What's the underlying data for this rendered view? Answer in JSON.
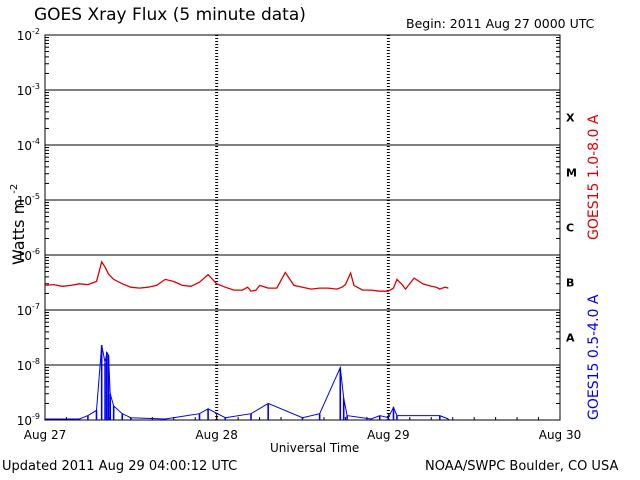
{
  "header": {
    "title": "GOES Xray Flux (5 minute data)",
    "begin": "Begin:  2011 Aug 27 0000 UTC"
  },
  "footer": {
    "updated": "Updated 2011 Aug 29 04:00:12 UTC",
    "credit": "NOAA/SWPC Boulder, CO USA"
  },
  "colors": {
    "long_channel": "#dd0000",
    "short_channel": "#0000ee",
    "axes": "#000000"
  },
  "chart_data": {
    "type": "line",
    "title": "GOES Xray Flux (5 minute data)",
    "xlabel": "Universal Time",
    "ylabel": "Watts m",
    "ylabel_superscript": "-2",
    "y_scale": "log",
    "ylim": [
      1e-09,
      0.01
    ],
    "y_ticks": [
      {
        "base": "10",
        "exp": "-2"
      },
      {
        "base": "10",
        "exp": "-3"
      },
      {
        "base": "10",
        "exp": "-4"
      },
      {
        "base": "10",
        "exp": "-5"
      },
      {
        "base": "10",
        "exp": "-6"
      },
      {
        "base": "10",
        "exp": "-7"
      },
      {
        "base": "10",
        "exp": "-8"
      },
      {
        "base": "10",
        "exp": "-9"
      }
    ],
    "x_unit": "days since 2011 Aug 27 0000 UTC",
    "xlim": [
      0,
      3
    ],
    "x_ticks": [
      "Aug 27",
      "Aug 28",
      "Aug 29",
      "Aug 30"
    ],
    "flare_classes": [
      "X",
      "M",
      "C",
      "B",
      "A"
    ],
    "grid": "horizontal decades, dashed day markers",
    "series": [
      {
        "name": "GOES15 1.0-8.0 A",
        "color": "#dd0000",
        "x": [
          0.0,
          0.05,
          0.1,
          0.15,
          0.2,
          0.25,
          0.3,
          0.33,
          0.35,
          0.37,
          0.4,
          0.45,
          0.5,
          0.55,
          0.6,
          0.65,
          0.7,
          0.75,
          0.8,
          0.85,
          0.9,
          0.95,
          1.0,
          1.05,
          1.1,
          1.15,
          1.18,
          1.2,
          1.23,
          1.25,
          1.3,
          1.35,
          1.4,
          1.45,
          1.5,
          1.55,
          1.6,
          1.65,
          1.7,
          1.73,
          1.75,
          1.78,
          1.8,
          1.85,
          1.9,
          1.95,
          2.0,
          2.03,
          2.05,
          2.08,
          2.1,
          2.15,
          2.2,
          2.25,
          2.28,
          2.3,
          2.33,
          2.35
        ],
        "y": [
          2.8e-07,
          2.9e-07,
          2.7e-07,
          2.8e-07,
          3e-07,
          2.9e-07,
          3.3e-07,
          7.5e-07,
          6e-07,
          4.5e-07,
          3.6e-07,
          3e-07,
          2.6e-07,
          2.5e-07,
          2.6e-07,
          2.8e-07,
          3.6e-07,
          3.3e-07,
          2.8e-07,
          2.7e-07,
          3.2e-07,
          4.4e-07,
          3e-07,
          2.6e-07,
          2.3e-07,
          2.3e-07,
          2.6e-07,
          2.2e-07,
          2.3e-07,
          2.8e-07,
          2.5e-07,
          2.5e-07,
          4.8e-07,
          2.8e-07,
          2.6e-07,
          2.4e-07,
          2.5e-07,
          2.5e-07,
          2.4e-07,
          2.6e-07,
          2.9e-07,
          4.7e-07,
          2.8e-07,
          2.3e-07,
          2.3e-07,
          2.2e-07,
          2.2e-07,
          2.5e-07,
          3.6e-07,
          2.9e-07,
          2.4e-07,
          3.8e-07,
          3e-07,
          2.7e-07,
          2.6e-07,
          2.4e-07,
          2.6e-07,
          2.5e-07
        ]
      },
      {
        "name": "GOES15 0.5-4.0 A",
        "color": "#0000ee",
        "x": [
          0.0,
          0.2,
          0.25,
          0.3,
          0.33,
          0.35,
          0.36,
          0.37,
          0.38,
          0.4,
          0.45,
          0.5,
          0.7,
          0.9,
          0.95,
          1.05,
          1.2,
          1.3,
          1.5,
          1.6,
          1.72,
          1.74,
          1.76,
          1.9,
          1.95,
          2.0,
          2.03,
          2.05,
          2.3,
          2.35
        ],
        "y": [
          1e-09,
          1e-09,
          1.2e-09,
          1.5e-09,
          2.3e-08,
          1.1e-08,
          1.7e-08,
          1.5e-08,
          3e-09,
          1.8e-09,
          1.3e-09,
          1.1e-09,
          1e-09,
          1.3e-09,
          1.6e-09,
          1.1e-09,
          1.3e-09,
          2e-09,
          1.1e-09,
          1.3e-09,
          9e-09,
          2.5e-09,
          1.2e-09,
          1e-09,
          1.2e-09,
          1.1e-09,
          1.7e-09,
          1.2e-09,
          1.2e-09,
          1e-09
        ]
      }
    ]
  }
}
